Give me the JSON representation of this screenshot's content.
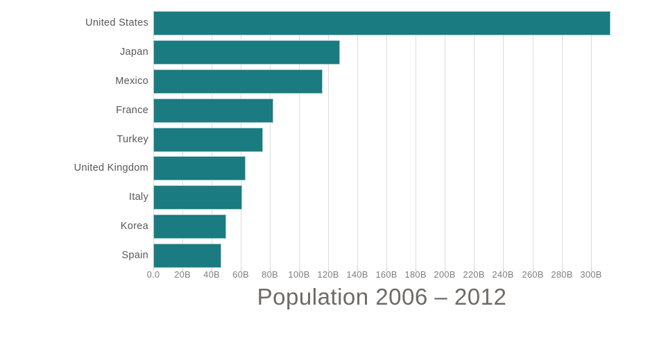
{
  "title": "Population 2006 – 2012",
  "colors": {
    "background": "#ffffff",
    "bar": "#1A7B80",
    "bar_edge": "#9EC9CC",
    "gridline": "#DCDCDC",
    "tick_mark": "#CCCCCC",
    "tick_label": "#7E7E7E",
    "category_label": "#575757",
    "title": "#6E6A68"
  },
  "chart_data": {
    "type": "bar",
    "orientation": "horizontal",
    "title": "Population 2006 – 2012",
    "categories": [
      "United States",
      "Japan",
      "Mexico",
      "France",
      "Turkey",
      "United Kingdom",
      "Italy",
      "Korea",
      "Spain"
    ],
    "values": [
      313.5,
      128.2,
      116.1,
      82.1,
      75.1,
      63.3,
      61.0,
      50.0,
      46.8
    ],
    "axis_unit": "B",
    "xlim": [
      0,
      313.5
    ],
    "x_ticks": [
      0,
      20,
      40,
      60,
      80,
      100,
      120,
      140,
      160,
      180,
      200,
      220,
      240,
      260,
      280,
      300
    ],
    "x_tick_labels": [
      "0.0",
      "20B",
      "40B",
      "60B",
      "80B",
      "100B",
      "120B",
      "140B",
      "160B",
      "180B",
      "200B",
      "220B",
      "240B",
      "260B",
      "280B",
      "300B"
    ],
    "grid": "vertical",
    "legend": "none",
    "xlabel": "",
    "ylabel": ""
  }
}
